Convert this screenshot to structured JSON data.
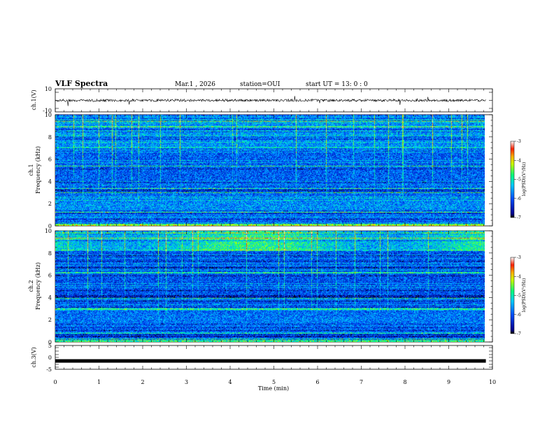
{
  "header": {
    "title": "VLF Spectra",
    "date": "Mar.1  , 2026",
    "station": "station=OUI",
    "start": "start  UT  =   13: 0  : 0"
  },
  "chart_data": [
    {
      "type": "line",
      "panel": "ch1-waveform",
      "ylabel": "ch.1(V)",
      "ylim": [
        -10,
        10
      ],
      "yticks": [
        "10",
        "-10"
      ],
      "xlim": [
        0,
        10
      ],
      "baseline_v": 0,
      "color": "#000000"
    },
    {
      "type": "heatmap",
      "panel": "ch1-spectrogram",
      "ylabel_1": "ch.1",
      "ylabel_2": "Frequency  (kHz)",
      "ylim": [
        0,
        10
      ],
      "yticks": [
        "0",
        "2",
        "4",
        "6",
        "8",
        "10"
      ],
      "xlim": [
        0,
        9.85
      ],
      "colorbar": {
        "label": "log(PSD)(V²/Hz)",
        "range": [
          -7,
          -3
        ],
        "ticks": [
          "-3",
          "-4",
          "-5",
          "-6",
          "-7"
        ]
      }
    },
    {
      "type": "heatmap",
      "panel": "ch2-spectrogram",
      "ylabel_1": "ch.2",
      "ylabel_2": "Frequency  (kHz)",
      "ylim": [
        0,
        10
      ],
      "yticks": [
        "0",
        "2",
        "4",
        "6",
        "8",
        "10"
      ],
      "xlim": [
        0,
        9.85
      ],
      "colorbar": {
        "label": "log(PSD)(V²/Hz)",
        "range": [
          -7,
          -3
        ],
        "ticks": [
          "-3",
          "-4",
          "-5",
          "-6",
          "-7"
        ]
      }
    },
    {
      "type": "line",
      "panel": "ch3-waveform",
      "ylabel": "ch.3(V)",
      "ylim": [
        -5,
        5
      ],
      "yticks": [
        "5",
        "0",
        "-5"
      ],
      "xlim": [
        0,
        10
      ],
      "baseline_v": -1.5,
      "color": "#000000"
    }
  ],
  "xaxis": {
    "label": "Time  (min)",
    "range": [
      0,
      10
    ],
    "ticks": [
      "0",
      "1",
      "2",
      "3",
      "4",
      "5",
      "6",
      "7",
      "8",
      "9",
      "10"
    ]
  }
}
